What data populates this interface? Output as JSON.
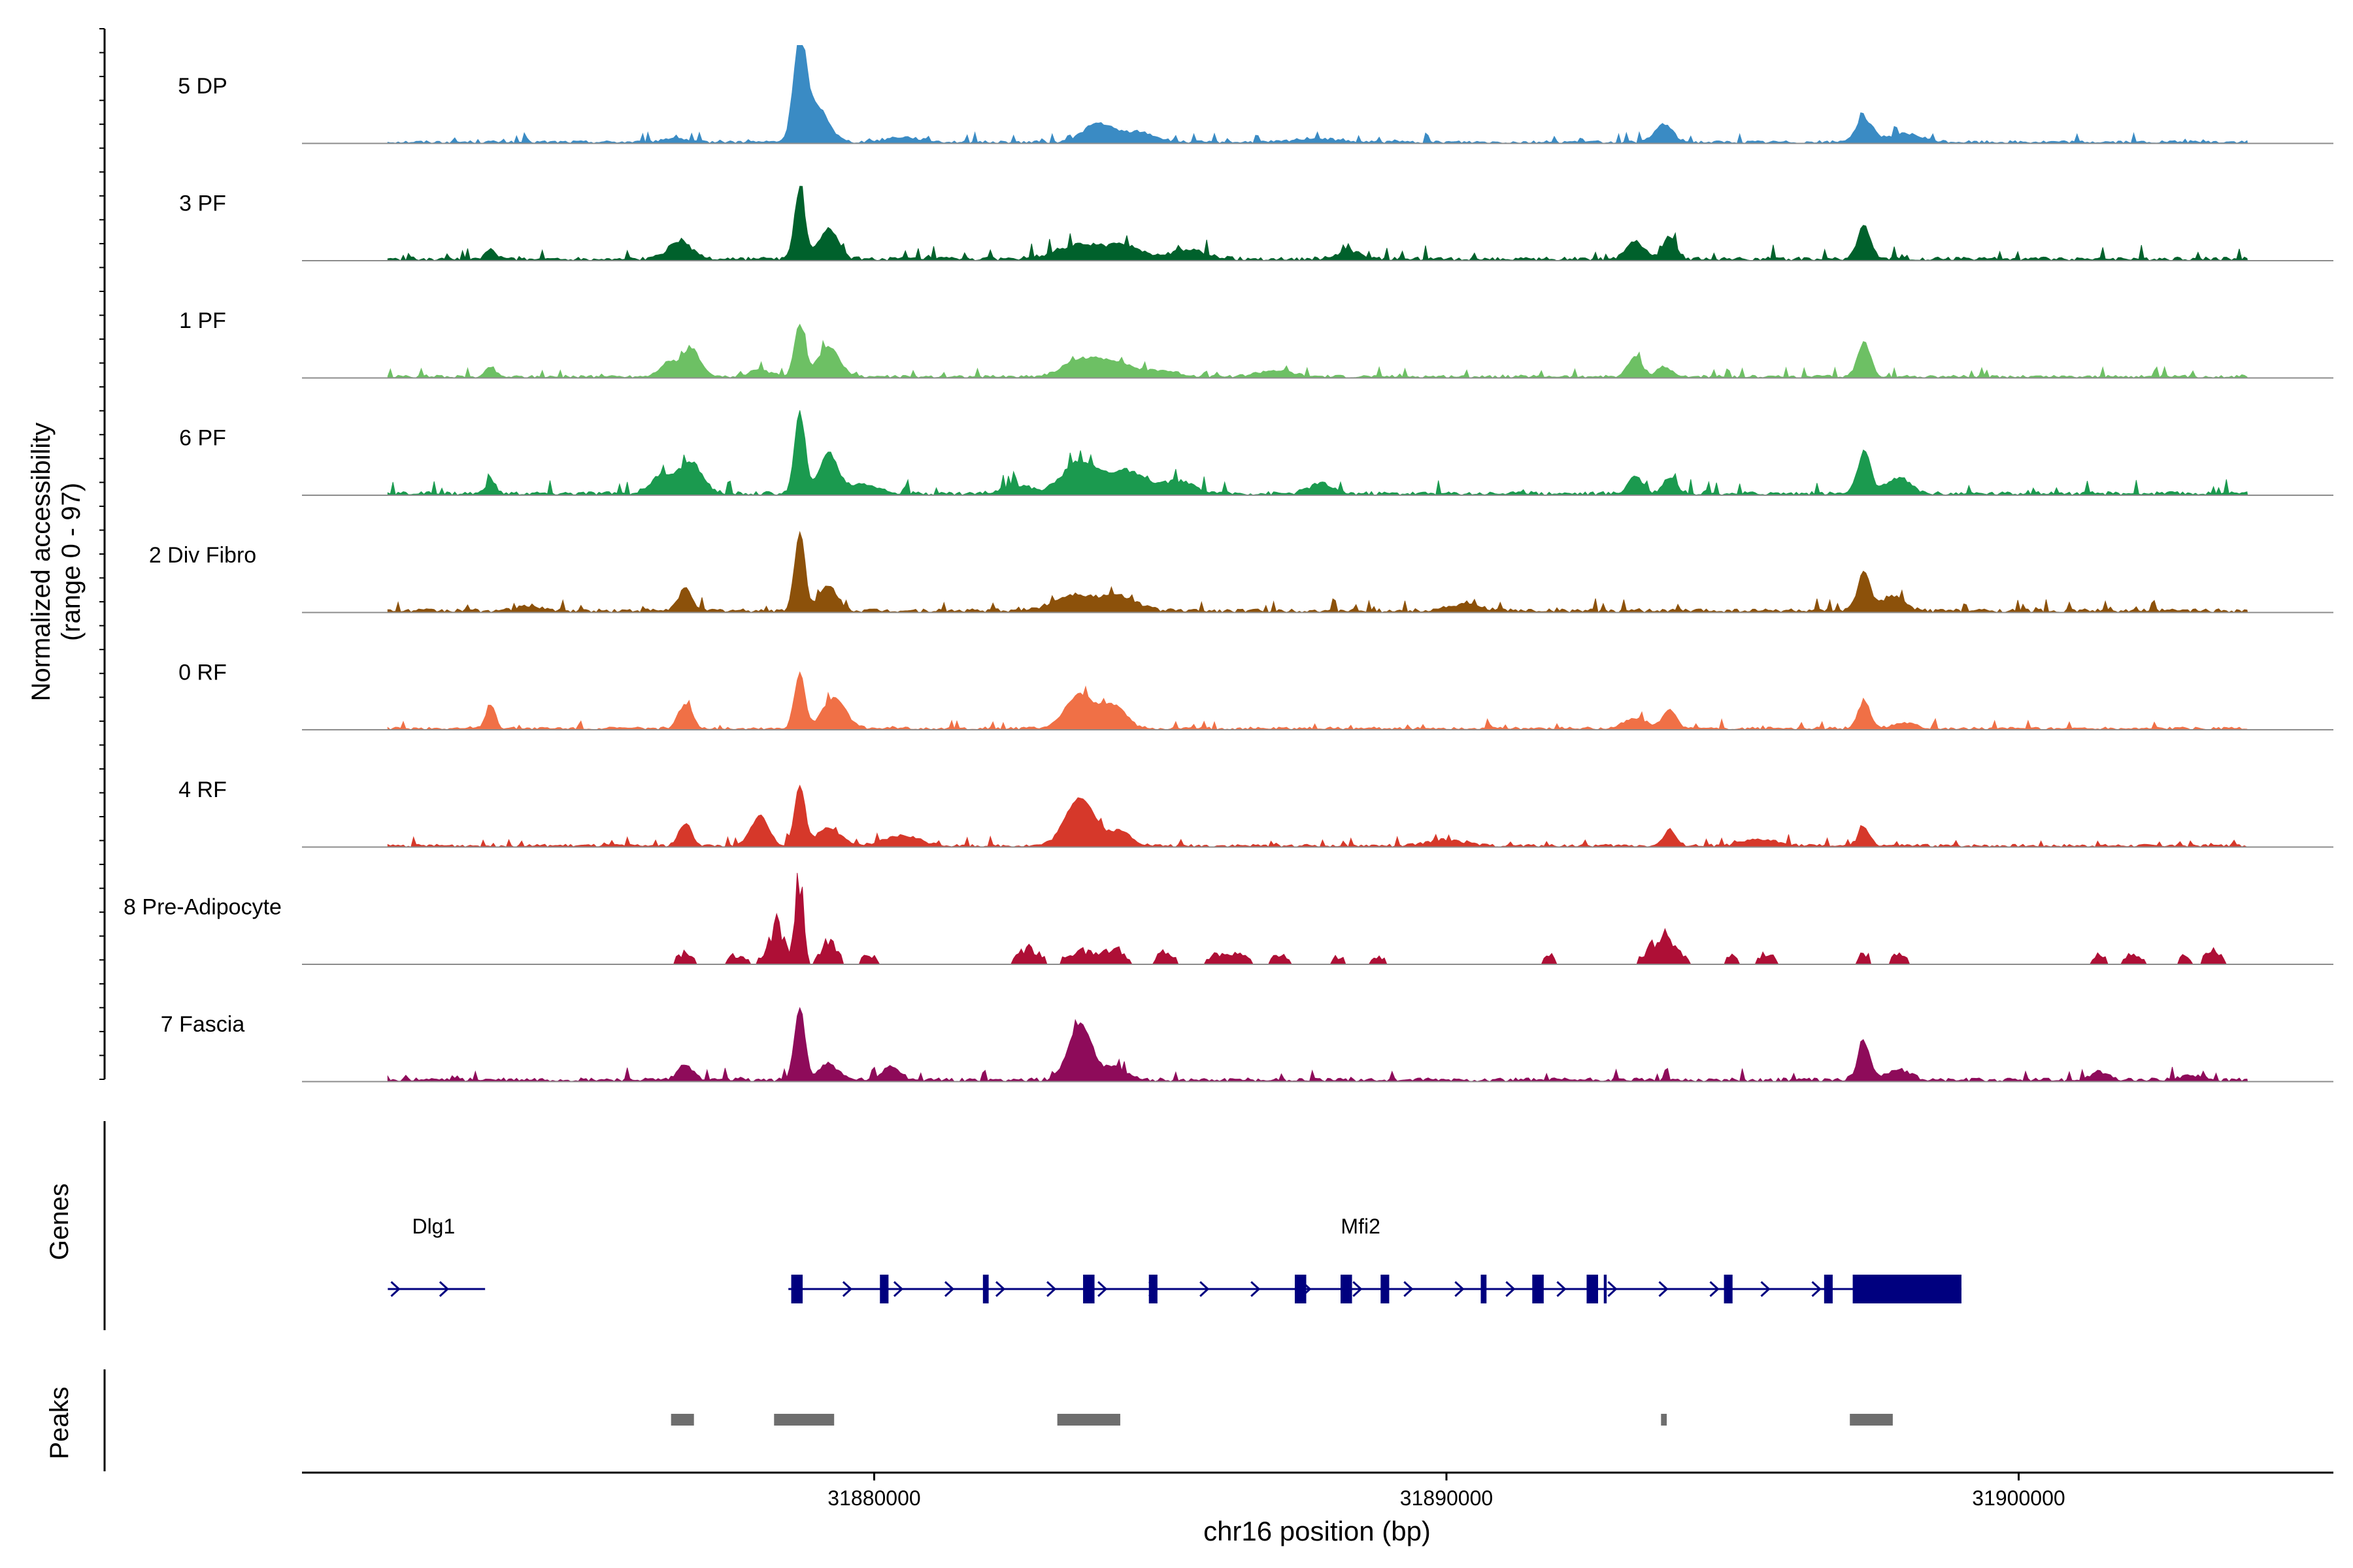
{
  "chart_data": {
    "type": "area",
    "title": "",
    "chromosome": "chr16",
    "xlabel": "chr16 position (bp)",
    "ylabel_line1": "Normalized accessibility",
    "ylabel_line2": "(range 0 - 97)",
    "xlim": [
      31870000,
      31905500
    ],
    "ylim": [
      0,
      97
    ],
    "x_ticks": [
      {
        "value": 31880000,
        "label": "31880000"
      },
      {
        "value": 31890000,
        "label": "31890000"
      },
      {
        "value": 31900000,
        "label": "31900000"
      }
    ],
    "series": [
      {
        "name": "5 DP",
        "color": "#3A8BC4",
        "base": 3,
        "noise": 4,
        "sparse": false,
        "peaks": [
          [
            31878700,
            97,
            110
          ],
          [
            31879000,
            35,
            200
          ],
          [
            31883900,
            18,
            250
          ],
          [
            31884600,
            10,
            300
          ],
          [
            31880500,
            5,
            300
          ],
          [
            31887700,
            4,
            300
          ],
          [
            31893800,
            18,
            150
          ],
          [
            31897300,
            22,
            150
          ],
          [
            31898000,
            8,
            300
          ],
          [
            31876500,
            4,
            200
          ]
        ]
      },
      {
        "name": "3 PF",
        "color": "#00612C",
        "base": 4,
        "noise": 6,
        "sparse": false,
        "peaks": [
          [
            31878700,
            70,
            90
          ],
          [
            31879200,
            30,
            160
          ],
          [
            31876600,
            18,
            200
          ],
          [
            31873300,
            10,
            80
          ],
          [
            31883600,
            14,
            400
          ],
          [
            31884400,
            12,
            300
          ],
          [
            31885500,
            9,
            300
          ],
          [
            31888300,
            8,
            200
          ],
          [
            31893300,
            18,
            150
          ],
          [
            31893900,
            22,
            120
          ],
          [
            31897300,
            33,
            110
          ]
        ]
      },
      {
        "name": "1 PF",
        "color": "#6DC064",
        "base": 3,
        "noise": 4,
        "sparse": false,
        "peaks": [
          [
            31878700,
            52,
            90
          ],
          [
            31879200,
            30,
            180
          ],
          [
            31876800,
            28,
            150
          ],
          [
            31876400,
            14,
            150
          ],
          [
            31873300,
            10,
            80
          ],
          [
            31883600,
            16,
            300
          ],
          [
            31884200,
            14,
            300
          ],
          [
            31885000,
            6,
            300
          ],
          [
            31887000,
            6,
            300
          ],
          [
            31893300,
            20,
            120
          ],
          [
            31893800,
            10,
            120
          ],
          [
            31897300,
            34,
            110
          ],
          [
            31878000,
            6,
            200
          ]
        ]
      },
      {
        "name": "6 PF",
        "color": "#1B9A4F",
        "base": 4,
        "noise": 6,
        "sparse": false,
        "peaks": [
          [
            31878700,
            80,
            90
          ],
          [
            31879200,
            40,
            160
          ],
          [
            31876800,
            30,
            200
          ],
          [
            31876300,
            18,
            200
          ],
          [
            31873300,
            14,
            80
          ],
          [
            31883600,
            32,
            300
          ],
          [
            31884400,
            22,
            300
          ],
          [
            31885300,
            12,
            300
          ],
          [
            31887800,
            10,
            200
          ],
          [
            31893300,
            18,
            120
          ],
          [
            31893900,
            16,
            120
          ],
          [
            31897300,
            42,
            110
          ],
          [
            31897900,
            16,
            200
          ],
          [
            31879800,
            10,
            250
          ],
          [
            31882500,
            8,
            250
          ]
        ]
      },
      {
        "name": "2 Div Fibro",
        "color": "#8C510A",
        "base": 4,
        "noise": 5,
        "sparse": false,
        "peaks": [
          [
            31878700,
            78,
            90
          ],
          [
            31879200,
            24,
            160
          ],
          [
            31876700,
            22,
            120
          ],
          [
            31883500,
            16,
            350
          ],
          [
            31884300,
            14,
            300
          ],
          [
            31897300,
            38,
            110
          ],
          [
            31897800,
            14,
            200
          ],
          [
            31890300,
            6,
            300
          ],
          [
            31874000,
            5,
            200
          ]
        ]
      },
      {
        "name": "0 RF",
        "color": "#F07046",
        "base": 3,
        "noise": 4,
        "sparse": false,
        "peaks": [
          [
            31878700,
            55,
            90
          ],
          [
            31879300,
            30,
            200
          ],
          [
            31876700,
            24,
            120
          ],
          [
            31873300,
            24,
            80
          ],
          [
            31883600,
            34,
            250
          ],
          [
            31884200,
            22,
            200
          ],
          [
            31893300,
            10,
            200
          ],
          [
            31893900,
            20,
            110
          ],
          [
            31897300,
            26,
            110
          ],
          [
            31898000,
            6,
            200
          ]
        ]
      },
      {
        "name": "4 RF",
        "color": "#D6382A",
        "base": 3,
        "noise": 4,
        "sparse": false,
        "peaks": [
          [
            31878700,
            60,
            90
          ],
          [
            31878000,
            30,
            150
          ],
          [
            31879200,
            18,
            200
          ],
          [
            31876700,
            22,
            110
          ],
          [
            31883600,
            48,
            250
          ],
          [
            31884300,
            14,
            200
          ],
          [
            31880500,
            10,
            300
          ],
          [
            31893900,
            16,
            100
          ],
          [
            31897300,
            18,
            100
          ],
          [
            31890000,
            6,
            300
          ],
          [
            31895500,
            6,
            300
          ]
        ]
      },
      {
        "name": "8 Pre-Adipocyte",
        "color": "#AE0F36",
        "base": 0,
        "noise": 0,
        "sparse": true,
        "peaks": [
          [
            31878700,
            90,
            70
          ],
          [
            31878300,
            44,
            150
          ],
          [
            31879200,
            24,
            150
          ],
          [
            31876700,
            12,
            150
          ],
          [
            31877600,
            10,
            200
          ],
          [
            31879900,
            10,
            150
          ],
          [
            31882700,
            18,
            200
          ],
          [
            31883600,
            14,
            250
          ],
          [
            31884200,
            16,
            200
          ],
          [
            31885100,
            14,
            150
          ],
          [
            31886200,
            14,
            300
          ],
          [
            31887100,
            10,
            150
          ],
          [
            31888100,
            8,
            150
          ],
          [
            31888800,
            8,
            200
          ],
          [
            31891800,
            10,
            100
          ],
          [
            31893800,
            30,
            250
          ],
          [
            31895000,
            10,
            100
          ],
          [
            31895600,
            12,
            150
          ],
          [
            31897300,
            12,
            100
          ],
          [
            31897900,
            10,
            150
          ],
          [
            31901400,
            12,
            100
          ],
          [
            31902000,
            10,
            200
          ],
          [
            31902900,
            10,
            100
          ],
          [
            31903400,
            14,
            150
          ]
        ]
      },
      {
        "name": "7 Fascia",
        "color": "#8E0B5A",
        "base": 4,
        "noise": 5,
        "sparse": false,
        "peaks": [
          [
            31878700,
            72,
            90
          ],
          [
            31879200,
            16,
            160
          ],
          [
            31876700,
            16,
            120
          ],
          [
            31883600,
            56,
            200
          ],
          [
            31884200,
            12,
            200
          ],
          [
            31880300,
            14,
            150
          ],
          [
            31897300,
            36,
            110
          ],
          [
            31897900,
            10,
            200
          ],
          [
            31901400,
            8,
            150
          ],
          [
            31903000,
            4,
            200
          ]
        ]
      }
    ],
    "genes": [
      {
        "name": "Dlg1",
        "label_pos": 31872300,
        "start": 31871500,
        "end": 31873200,
        "strand": "+",
        "exons": []
      },
      {
        "name": "Mfi2",
        "label_pos": 31888500,
        "start": 31878500,
        "end": 31899000,
        "strand": "+",
        "exons": [
          [
            31878550,
            31878750
          ],
          [
            31880100,
            31880250
          ],
          [
            31881900,
            31882000
          ],
          [
            31883650,
            31883850
          ],
          [
            31884800,
            31884950
          ],
          [
            31887350,
            31887550
          ],
          [
            31888150,
            31888350
          ],
          [
            31888850,
            31889000
          ],
          [
            31890600,
            31890700
          ],
          [
            31891500,
            31891700
          ],
          [
            31892450,
            31892650
          ],
          [
            31892750,
            31892800
          ],
          [
            31894850,
            31895000
          ],
          [
            31896600,
            31896750
          ],
          [
            31897100,
            31899000
          ]
        ]
      }
    ],
    "peaks_track": [
      [
        31876450,
        31876850
      ],
      [
        31878250,
        31879300
      ],
      [
        31883200,
        31884300
      ],
      [
        31893750,
        31893850
      ],
      [
        31897050,
        31897800
      ]
    ],
    "panel_labels": {
      "genes": "Genes",
      "peaks": "Peaks"
    }
  }
}
